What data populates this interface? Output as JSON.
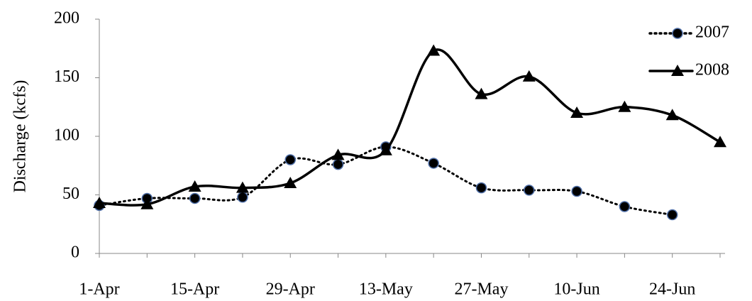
{
  "chart_data": {
    "type": "line",
    "y_label": "Discharge (kcfs)",
    "categories": [
      "1-Apr",
      null,
      "15-Apr",
      null,
      "29-Apr",
      null,
      "13-May",
      null,
      "27-May",
      null,
      "10-Jun",
      null,
      "24-Jun",
      null
    ],
    "series": [
      {
        "name": "2007",
        "color": "#000000",
        "marker": "circle",
        "marker_fill": "#000000",
        "marker_edge": "#4f6fa8",
        "dash": "dotted",
        "values": [
          41,
          47,
          47,
          48,
          80,
          76,
          91,
          77,
          56,
          54,
          53,
          40,
          33,
          null
        ]
      },
      {
        "name": "2008",
        "color": "#000000",
        "marker": "triangle",
        "dash": "solid",
        "values": [
          43,
          42,
          57,
          56,
          60,
          84,
          88,
          173,
          136,
          151,
          120,
          125,
          118,
          95
        ]
      }
    ],
    "ylim": [
      0,
      200
    ],
    "yticks": [
      0,
      50,
      100,
      150,
      200
    ],
    "grid": false,
    "legend": "top-right"
  }
}
